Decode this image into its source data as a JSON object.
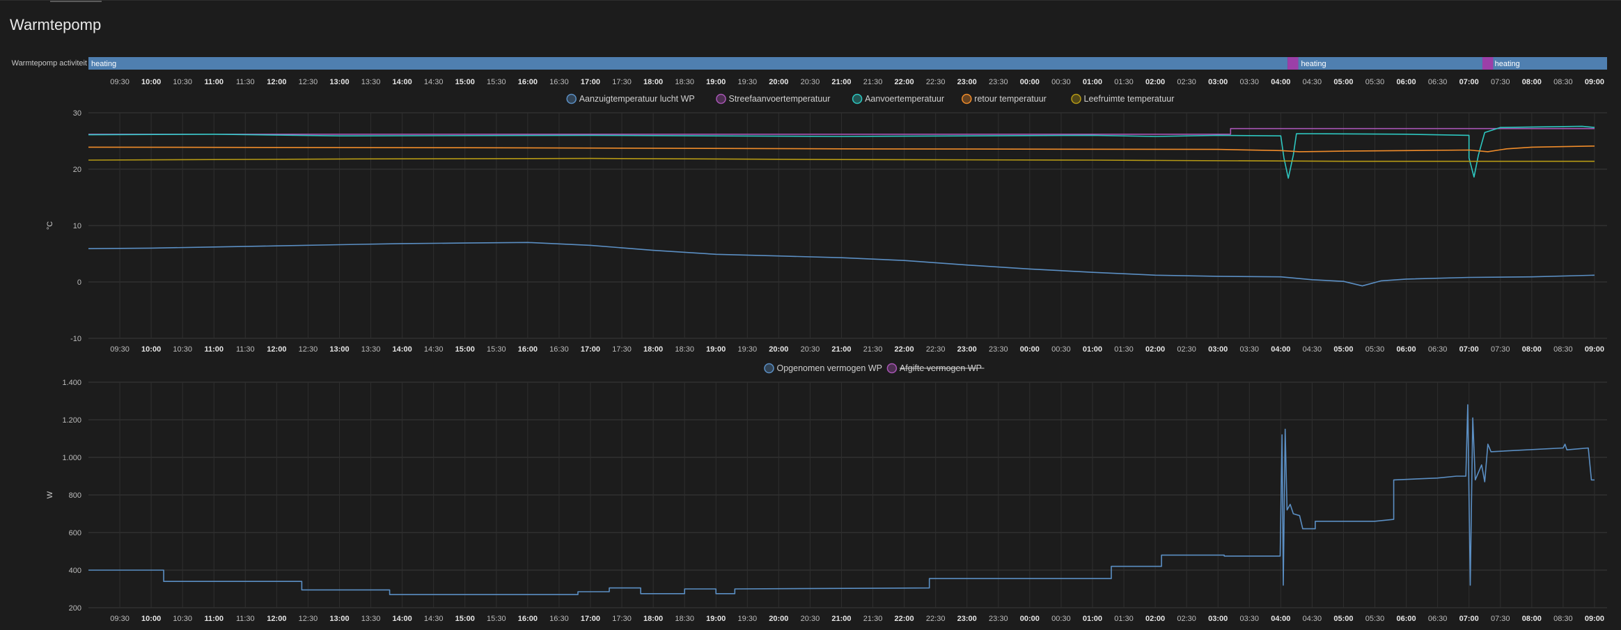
{
  "card": {
    "title": "Warmtepomp"
  },
  "timeline": {
    "label": "Warmtepomp activiteit",
    "bar_color": "#4f7fb0",
    "marker_color": "#9c3fa8",
    "segments": [
      {
        "state": "heating",
        "start": 0.0,
        "end": 18.95
      },
      {
        "state": "heating",
        "start": 19.12,
        "end": 22.03
      },
      {
        "state": "heating",
        "start": 22.18,
        "end": 24.0
      }
    ]
  },
  "time_axis": {
    "ticks": [
      "09:30",
      "10:00",
      "10:30",
      "11:00",
      "11:30",
      "12:00",
      "12:30",
      "13:00",
      "13:30",
      "14:00",
      "14:30",
      "15:00",
      "15:30",
      "16:00",
      "16:30",
      "17:00",
      "17:30",
      "18:00",
      "18:30",
      "19:00",
      "19:30",
      "20:00",
      "20:30",
      "21:00",
      "21:30",
      "22:00",
      "22:30",
      "23:00",
      "23:30",
      "00:00",
      "00:30",
      "01:00",
      "01:30",
      "02:00",
      "02:30",
      "03:00",
      "03:30",
      "04:00",
      "04:30",
      "05:00",
      "05:30",
      "06:00",
      "06:30",
      "07:00",
      "07:30",
      "08:00",
      "08:30",
      "09:00"
    ]
  },
  "chart_data": [
    {
      "type": "line",
      "ylabel": "°C",
      "ylim": [
        -10,
        30
      ],
      "yticks": [
        "30",
        "20",
        "10",
        "0",
        "-10"
      ],
      "grid": true,
      "legend_position": "top-center",
      "series": [
        {
          "name": "Aanzuigtemperatuur lucht WP",
          "color": "#5b8fc4",
          "points": [
            [
              0,
              5.9
            ],
            [
              1,
              6.0
            ],
            [
              2,
              6.2
            ],
            [
              3,
              6.4
            ],
            [
              4,
              6.6
            ],
            [
              5,
              6.8
            ],
            [
              6,
              6.9
            ],
            [
              7,
              7.0
            ],
            [
              8,
              6.5
            ],
            [
              9,
              5.6
            ],
            [
              10,
              4.9
            ],
            [
              11,
              4.6
            ],
            [
              12,
              4.3
            ],
            [
              13,
              3.8
            ],
            [
              14,
              3.0
            ],
            [
              15,
              2.3
            ],
            [
              16,
              1.7
            ],
            [
              17,
              1.2
            ],
            [
              18,
              1.0
            ],
            [
              19,
              0.9
            ],
            [
              19.5,
              0.4
            ],
            [
              20,
              0.1
            ],
            [
              20.3,
              -0.7
            ],
            [
              20.6,
              0.2
            ],
            [
              21,
              0.5
            ],
            [
              22,
              0.8
            ],
            [
              23,
              0.9
            ],
            [
              24,
              1.2
            ]
          ]
        },
        {
          "name": "Streefaanvoertemperatuur",
          "color": "#a855b5",
          "points": [
            [
              0,
              26.2
            ],
            [
              18.2,
              26.2
            ],
            [
              18.2,
              27.2
            ],
            [
              24,
              27.2
            ]
          ]
        },
        {
          "name": "Aanvoertemperatuur",
          "color": "#2ec7c0",
          "points": [
            [
              0,
              26.1
            ],
            [
              2,
              26.2
            ],
            [
              4,
              25.9
            ],
            [
              8,
              26.0
            ],
            [
              12,
              25.8
            ],
            [
              16,
              26.0
            ],
            [
              17,
              25.8
            ],
            [
              18,
              26.0
            ],
            [
              19.0,
              25.9
            ],
            [
              19.05,
              22.0
            ],
            [
              19.12,
              18.4
            ],
            [
              19.2,
              22.5
            ],
            [
              19.25,
              26.3
            ],
            [
              21,
              26.2
            ],
            [
              22,
              26.0
            ],
            [
              22.0,
              22.0
            ],
            [
              22.08,
              18.6
            ],
            [
              22.15,
              22.5
            ],
            [
              22.25,
              26.5
            ],
            [
              22.5,
              27.4
            ],
            [
              23.8,
              27.6
            ],
            [
              24,
              27.4
            ]
          ]
        },
        {
          "name": "retour temperatuur",
          "color": "#f08c2a",
          "points": [
            [
              0,
              23.9
            ],
            [
              6,
              23.8
            ],
            [
              12,
              23.6
            ],
            [
              18,
              23.5
            ],
            [
              19.0,
              23.3
            ],
            [
              19.3,
              23.1
            ],
            [
              20,
              23.2
            ],
            [
              21,
              23.3
            ],
            [
              22.0,
              23.4
            ],
            [
              22.3,
              23.1
            ],
            [
              22.6,
              23.6
            ],
            [
              23,
              23.9
            ],
            [
              24,
              24.1
            ]
          ]
        },
        {
          "name": "Leefruimte temperatuur",
          "color": "#b69a15",
          "points": [
            [
              0,
              21.6
            ],
            [
              4,
              21.8
            ],
            [
              8,
              21.9
            ],
            [
              12,
              21.7
            ],
            [
              16,
              21.6
            ],
            [
              20,
              21.4
            ],
            [
              24,
              21.4
            ]
          ]
        }
      ]
    },
    {
      "type": "line",
      "ylabel": "W",
      "ylim": [
        200,
        1400
      ],
      "yticks": [
        "1.400",
        "1.200",
        "1.000",
        "800",
        "600",
        "400",
        "200"
      ],
      "grid": true,
      "legend_position": "top-center",
      "series": [
        {
          "name": "Opgenomen vermogen WP",
          "color": "#5b8fc4",
          "points": [
            [
              0,
              400
            ],
            [
              1.2,
              400
            ],
            [
              1.2,
              340
            ],
            [
              3.4,
              340
            ],
            [
              3.4,
              295
            ],
            [
              4.8,
              295
            ],
            [
              4.8,
              270
            ],
            [
              7.8,
              270
            ],
            [
              7.8,
              285
            ],
            [
              8.3,
              285
            ],
            [
              8.3,
              305
            ],
            [
              8.8,
              305
            ],
            [
              8.8,
              275
            ],
            [
              9.5,
              275
            ],
            [
              9.5,
              300
            ],
            [
              10.0,
              300
            ],
            [
              10.0,
              275
            ],
            [
              10.3,
              275
            ],
            [
              10.3,
              300
            ],
            [
              13.4,
              305
            ],
            [
              13.4,
              355
            ],
            [
              16.3,
              355
            ],
            [
              16.3,
              420
            ],
            [
              17.1,
              420
            ],
            [
              17.1,
              480
            ],
            [
              18.1,
              480
            ],
            [
              18.1,
              475
            ],
            [
              18.99,
              475
            ],
            [
              19.02,
              1120
            ],
            [
              19.04,
              320
            ],
            [
              19.07,
              1150
            ],
            [
              19.1,
              720
            ],
            [
              19.15,
              750
            ],
            [
              19.2,
              700
            ],
            [
              19.3,
              690
            ],
            [
              19.35,
              620
            ],
            [
              19.55,
              620
            ],
            [
              19.55,
              660
            ],
            [
              20.5,
              660
            ],
            [
              20.8,
              670
            ],
            [
              20.8,
              880
            ],
            [
              21.5,
              890
            ],
            [
              21.8,
              900
            ],
            [
              21.95,
              900
            ],
            [
              21.98,
              1280
            ],
            [
              22.02,
              320
            ],
            [
              22.06,
              1210
            ],
            [
              22.1,
              880
            ],
            [
              22.2,
              960
            ],
            [
              22.25,
              870
            ],
            [
              22.3,
              1070
            ],
            [
              22.35,
              1030
            ],
            [
              23.5,
              1050
            ],
            [
              23.53,
              1070
            ],
            [
              23.56,
              1040
            ],
            [
              23.9,
              1050
            ],
            [
              23.95,
              880
            ],
            [
              24,
              880
            ]
          ]
        },
        {
          "name": "Afgifte vermogen WP",
          "color": "#a855b5",
          "hidden": true,
          "points": []
        }
      ]
    }
  ]
}
